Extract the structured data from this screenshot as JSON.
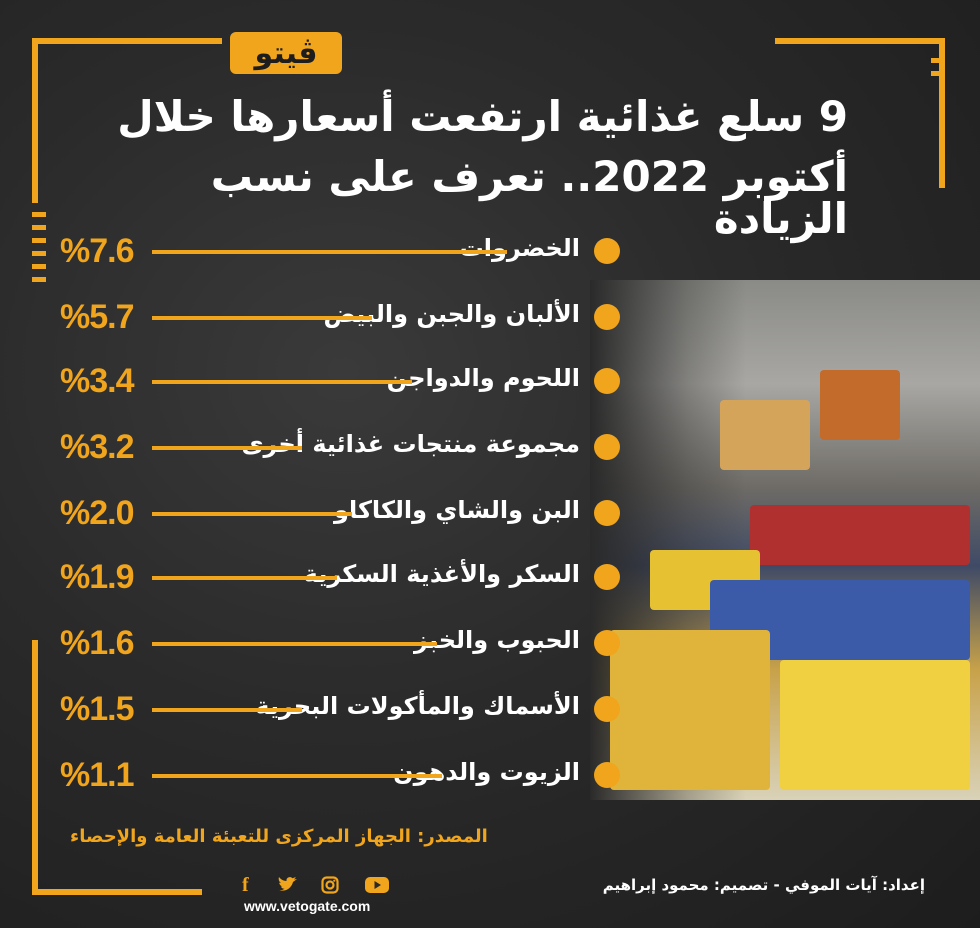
{
  "logo_text": "ڤيتو",
  "title_line1": "9 سلع غذائية ارتفعت أسعارها خلال",
  "title_line2": "أكتوبر 2022.. تعرف على نسب الزيادة",
  "rows": [
    {
      "label": "الخضروات",
      "pct": "%7.6"
    },
    {
      "label": "الألبان والجبن والبيض",
      "pct": "%5.7"
    },
    {
      "label": "اللحوم والدواجن",
      "pct": "%3.4"
    },
    {
      "label": "مجموعة منتجات غذائية أخرى",
      "pct": "%3.2"
    },
    {
      "label": "البن والشاي والكاكاو",
      "pct": "%2.0"
    },
    {
      "label": "السكر والأغذية السكرية",
      "pct": "%1.9"
    },
    {
      "label": "الحبوب والخبز",
      "pct": "%1.6"
    },
    {
      "label": "الأسماك والمأكولات البحرية",
      "pct": "%1.5"
    },
    {
      "label": "الزيوت والدهون",
      "pct": "%1.1"
    }
  ],
  "source": "المصدر: الجهاز المركزى للتعبئة العامة والإحصاء",
  "credits": "إعداد: آيات الموفي  -  تصميم: محمود إبراهيم",
  "url": "www.vetogate.com",
  "social_icons": [
    "facebook-icon",
    "twitter-icon",
    "instagram-icon",
    "youtube-icon"
  ],
  "accent_color": "#f0a51c"
}
